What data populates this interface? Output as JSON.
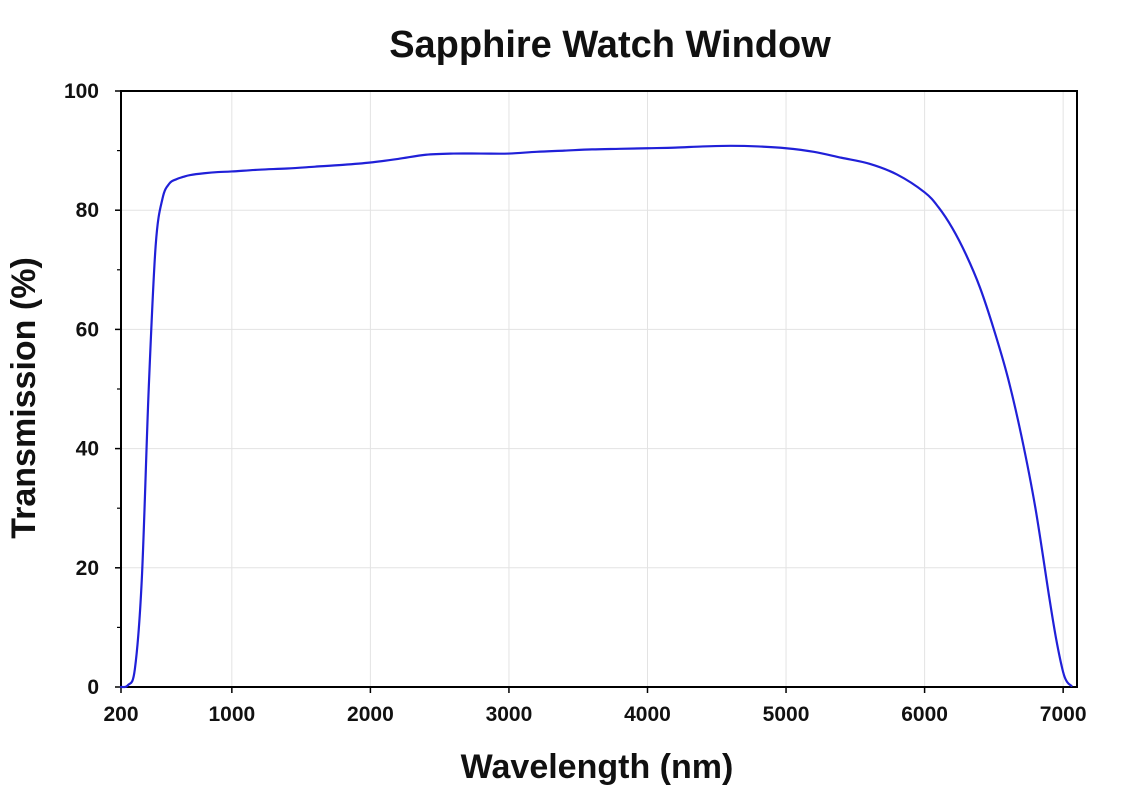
{
  "chart_data": {
    "type": "line",
    "title": "Sapphire Watch Window",
    "xlabel": "Wavelength (nm)",
    "ylabel": "Transmission (%)",
    "xlim": [
      200,
      7100
    ],
    "ylim": [
      0,
      100
    ],
    "xticks": [
      200,
      1000,
      2000,
      3000,
      4000,
      5000,
      6000,
      7000
    ],
    "yticks": [
      0,
      20,
      40,
      60,
      80,
      100
    ],
    "grid": true,
    "line_color": "#2020d8",
    "series": [
      {
        "x": [
          200,
          250,
          300,
          350,
          400,
          450,
          500,
          550,
          600,
          650,
          700,
          800,
          900,
          1000,
          1200,
          1400,
          1600,
          1800,
          2000,
          2200,
          2400,
          2600,
          2800,
          3000,
          3200,
          3400,
          3600,
          3800,
          4000,
          4200,
          4400,
          4600,
          4800,
          5000,
          5200,
          5400,
          5600,
          5800,
          6000,
          6100,
          6200,
          6300,
          6400,
          6500,
          6600,
          6700,
          6800,
          6900,
          6950,
          7000,
          7030,
          7060
        ],
        "y": [
          0,
          0.3,
          3,
          18,
          50,
          74,
          82,
          84.5,
          85.2,
          85.6,
          85.9,
          86.2,
          86.4,
          86.5,
          86.8,
          87.0,
          87.3,
          87.6,
          88.0,
          88.6,
          89.3,
          89.5,
          89.5,
          89.5,
          89.8,
          90.0,
          90.2,
          90.3,
          90.4,
          90.5,
          90.7,
          90.8,
          90.7,
          90.4,
          89.8,
          88.8,
          87.8,
          86.0,
          83.0,
          80.5,
          77.0,
          72.5,
          67.0,
          60.0,
          52.0,
          42.0,
          30.0,
          15.0,
          8.0,
          2.5,
          0.8,
          0.2
        ]
      }
    ]
  }
}
